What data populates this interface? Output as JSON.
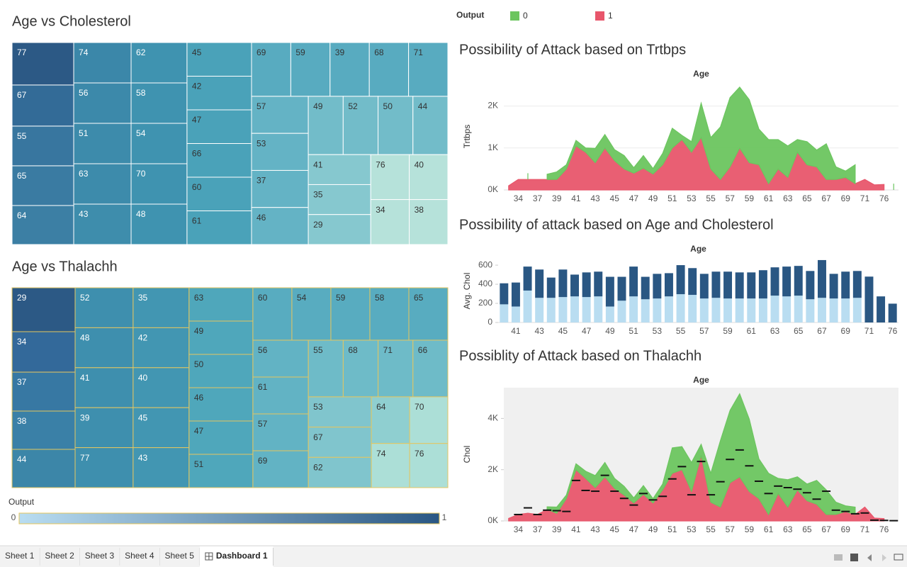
{
  "chart_data": [
    {
      "type": "treemap",
      "title": "Age vs Cholesterol",
      "border": "#ffffff",
      "labels": [
        77,
        67,
        55,
        65,
        64,
        74,
        56,
        51,
        63,
        43,
        62,
        58,
        54,
        70,
        48,
        45,
        42,
        47,
        66,
        60,
        61,
        69,
        59,
        39,
        68,
        71,
        57,
        53,
        37,
        46,
        49,
        52,
        50,
        44,
        41,
        35,
        29,
        76,
        40,
        34,
        38
      ],
      "values": [
        304,
        294,
        284,
        284,
        279,
        269,
        269,
        269,
        269,
        269,
        262,
        262,
        262,
        262,
        262,
        252,
        252,
        252,
        252,
        252,
        252,
        245,
        245,
        245,
        245,
        245,
        244,
        244,
        244,
        244,
        236,
        236,
        236,
        236,
        217,
        217,
        217,
        201,
        201,
        201,
        201
      ],
      "colors": [
        "#2c5985",
        "#336b97",
        "#38769f",
        "#3a7ba2",
        "#3c7fa4",
        "#3b87a9",
        "#3c89aa",
        "#3d8bab",
        "#3d8bab",
        "#3e8dac",
        "#3f93b0",
        "#3f93b0",
        "#3f93b0",
        "#3f93b0",
        "#3f93b0",
        "#4aa2b9",
        "#4aa2b9",
        "#4aa2b9",
        "#4aa2b9",
        "#4aa2b9",
        "#4aa2b9",
        "#58abc0",
        "#58abc0",
        "#58abc0",
        "#58abc0",
        "#58abc0",
        "#64b3c5",
        "#64b3c5",
        "#64b3c5",
        "#64b3c5",
        "#72bcc9",
        "#72bcc9",
        "#72bcc9",
        "#72bcc9",
        "#86c8cf",
        "#86c8cf",
        "#86c8cf",
        "#b6e2da",
        "#b6e2da",
        "#b6e2da",
        "#b6e2da"
      ]
    },
    {
      "type": "treemap",
      "title": "Age vs Thalachh",
      "border": "#e3c661",
      "labels": [
        29,
        34,
        37,
        38,
        44,
        52,
        48,
        41,
        39,
        77,
        35,
        42,
        40,
        45,
        43,
        63,
        49,
        50,
        46,
        47,
        51,
        60,
        54,
        59,
        58,
        65,
        56,
        61,
        57,
        69,
        55,
        68,
        71,
        66,
        53,
        67,
        62,
        64,
        70,
        74,
        76
      ],
      "values": [
        202,
        186,
        179,
        176,
        176,
        169,
        169,
        169,
        169,
        169,
        163,
        163,
        163,
        163,
        163,
        155,
        155,
        155,
        155,
        155,
        155,
        149,
        149,
        149,
        149,
        149,
        149,
        149,
        149,
        149,
        144,
        144,
        144,
        144,
        139,
        139,
        139,
        130,
        130,
        123,
        123
      ],
      "colors": [
        "#2c5985",
        "#33699a",
        "#3778a3",
        "#3a80a7",
        "#3c86a8",
        "#3e8fae",
        "#3e8fae",
        "#3e8fae",
        "#3e8fae",
        "#3e8fae",
        "#4296b2",
        "#4296b2",
        "#4296b2",
        "#4296b2",
        "#4296b2",
        "#4fa7bb",
        "#4fa7bb",
        "#4fa7bb",
        "#4fa7bb",
        "#4fa7bb",
        "#4fa7bb",
        "#58acc0",
        "#58acc0",
        "#58acc0",
        "#58acc0",
        "#58acc0",
        "#62b3c4",
        "#62b3c4",
        "#62b3c4",
        "#62b3c4",
        "#6ebbc8",
        "#6ebbc8",
        "#6ebbc8",
        "#6ebbc8",
        "#80c5cd",
        "#80c5cd",
        "#80c5cd",
        "#8fcfd0",
        "#acdfd7",
        "#acdfd7",
        "#acdfd7"
      ]
    },
    {
      "type": "area",
      "title": "Possibility of Attack based on Trtbps",
      "x_label": "Age",
      "y_label": "Trtbps",
      "grid": true,
      "categories": [
        null,
        34,
        null,
        37,
        null,
        39,
        null,
        41,
        null,
        43,
        null,
        45,
        null,
        47,
        null,
        49,
        null,
        51,
        null,
        53,
        null,
        55,
        null,
        57,
        null,
        59,
        null,
        61,
        null,
        63,
        null,
        65,
        null,
        67,
        null,
        69,
        null,
        71,
        null,
        76,
        null
      ],
      "series": [
        {
          "name": "1",
          "color": "#e8566b",
          "values": [
            100,
            250,
            250,
            250,
            250,
            250,
            500,
            1050,
            900,
            650,
            1000,
            700,
            500,
            400,
            520,
            380,
            600,
            1000,
            1200,
            900,
            1250,
            500,
            250,
            550,
            1000,
            650,
            600,
            150,
            500,
            300,
            900,
            600,
            550,
            250,
            250,
            300,
            150,
            250,
            120,
            130,
            null
          ]
        },
        {
          "name": "0",
          "color": "#6cc55f",
          "values": [
            null,
            null,
            150,
            null,
            125,
            180,
            100,
            130,
            100,
            340,
            320,
            260,
            320,
            130,
            300,
            130,
            270,
            470,
            100,
            250,
            820,
            750,
            1250,
            1650,
            1450,
            1500,
            850,
            1050,
            700,
            750,
            300,
            550,
            400,
            850,
            300,
            150,
            450,
            null,
            null,
            null,
            150
          ]
        }
      ],
      "ylim": [
        0,
        2550
      ],
      "yticks": [
        {
          "value": 0,
          "label": "0K"
        },
        {
          "value": 1000,
          "label": "1K"
        },
        {
          "value": 2000,
          "label": "2K"
        }
      ]
    },
    {
      "type": "bar",
      "title": "Possibility of attack based on Age and Cholesterol",
      "x_label": "Age",
      "y_label": "Avg. Chol",
      "categories": [
        null,
        41,
        null,
        43,
        null,
        45,
        null,
        47,
        null,
        49,
        null,
        51,
        null,
        53,
        null,
        55,
        null,
        57,
        null,
        59,
        null,
        61,
        null,
        63,
        null,
        65,
        null,
        67,
        null,
        69,
        null,
        71,
        null,
        76
      ],
      "series": [
        {
          "color": "#b9ddf1",
          "values": [
            190,
            167,
            334,
            258,
            258,
            266,
            273,
            266,
            273,
            167,
            228,
            273,
            243,
            251,
            273,
            296,
            289,
            251,
            258,
            251,
            251,
            251,
            251,
            281,
            273,
            281,
            243,
            258,
            251,
            251,
            258,
            null,
            null,
            null
          ]
        },
        {
          "color": "#2a5783",
          "values": [
            220,
            251,
            251,
            296,
            212,
            288,
            228,
            258,
            259,
            311,
            250,
            312,
            235,
            258,
            243,
            304,
            280,
            258,
            274,
            281,
            273,
            273,
            296,
            296,
            312,
            311,
            296,
            395,
            258,
            281,
            281,
            480,
            273,
            197
          ]
        }
      ],
      "ylim": [
        0,
        660
      ],
      "yticks": [
        0,
        200,
        400,
        600
      ]
    },
    {
      "type": "area",
      "title": "Possiblity of Attack based on Thalachh",
      "x_label": "Age",
      "y_label": "Chol",
      "plot_background": "#f0f0f0",
      "categories": [
        null,
        34,
        null,
        37,
        null,
        39,
        null,
        41,
        null,
        43,
        null,
        45,
        null,
        47,
        null,
        49,
        null,
        51,
        null,
        53,
        null,
        55,
        null,
        57,
        null,
        59,
        null,
        61,
        null,
        63,
        null,
        65,
        null,
        67,
        null,
        69,
        null,
        71,
        null,
        76,
        null
      ],
      "series": [
        {
          "name": "1",
          "color": "#e8566b",
          "values": [
            100,
            250,
            300,
            250,
            450,
            300,
            870,
            2000,
            1660,
            1300,
            1720,
            1270,
            1010,
            700,
            1040,
            700,
            1210,
            1860,
            2000,
            1150,
            2560,
            730,
            540,
            1490,
            1720,
            1150,
            870,
            250,
            1070,
            540,
            1210,
            790,
            650,
            250,
            250,
            370,
            250,
            540,
            110,
            90,
            null
          ]
        },
        {
          "name": "0",
          "color": "#6cc55f",
          "values": [
            null,
            null,
            null,
            null,
            100,
            240,
            140,
            230,
            280,
            470,
            560,
            390,
            340,
            200,
            340,
            170,
            230,
            990,
            900,
            1130,
            430,
            1130,
            2590,
            2820,
            3240,
            2820,
            1550,
            1610,
            590,
            1070,
            510,
            650,
            930,
            960,
            480,
            220,
            290,
            null,
            null,
            null,
            null
          ]
        }
      ],
      "markers": {
        "color": "#111111",
        "values": [
          null,
          250,
          510,
          250,
          420,
          400,
          370,
          1580,
          1190,
          1160,
          1780,
          1160,
          880,
          620,
          1070,
          820,
          960,
          1640,
          2120,
          1020,
          2320,
          1020,
          1530,
          2400,
          2770,
          2150,
          1550,
          1070,
          1360,
          1300,
          1240,
          1100,
          850,
          1160,
          420,
          370,
          280,
          310,
          30,
          20,
          10
        ]
      },
      "ylim": [
        0,
        5200
      ],
      "yticks": [
        {
          "value": 0,
          "label": "0K"
        },
        {
          "value": 2000,
          "label": "2K"
        },
        {
          "value": 4000,
          "label": "4K"
        }
      ]
    }
  ],
  "legend": {
    "title": "Output"
  },
  "output_legend": {
    "title": "Output",
    "min": 0,
    "max": 1,
    "colors": [
      "#b9ddf1",
      "#2a5783"
    ]
  },
  "tabs": [
    "Sheet 1",
    "Sheet 2",
    "Sheet 3",
    "Sheet 4",
    "Sheet 5",
    "Dashboard 1"
  ],
  "active_tab": 5
}
